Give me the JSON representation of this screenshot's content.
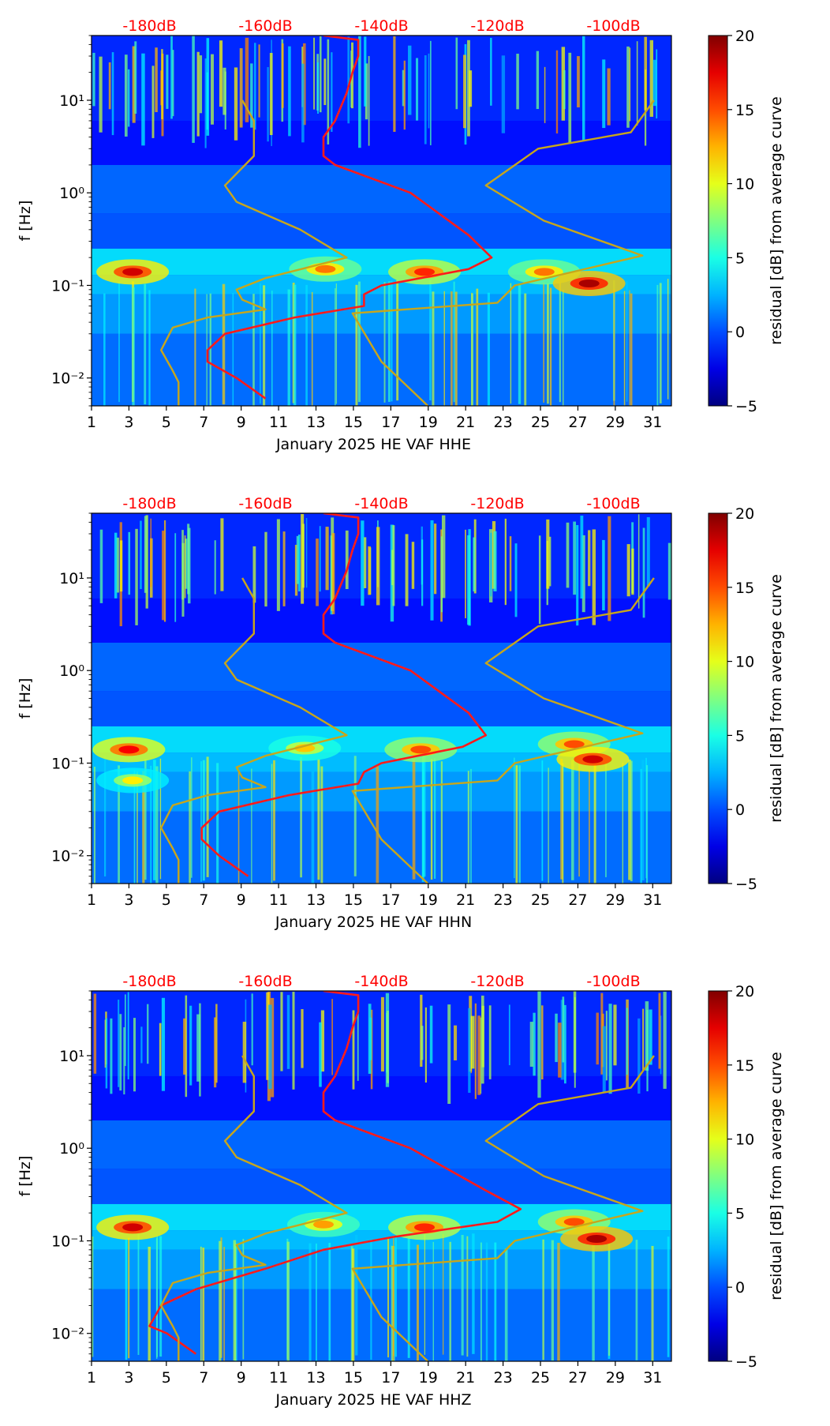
{
  "chart_data": [
    {
      "type": "heatmap",
      "xlabel": "January 2025 HE VAF  HHE",
      "ylabel": "f [Hz]",
      "x_ticks": [
        "1",
        "3",
        "5",
        "7",
        "9",
        "11",
        "13",
        "15",
        "17",
        "19",
        "21",
        "23",
        "25",
        "27",
        "29",
        "31"
      ],
      "y_ticks": [
        "10⁻²",
        "10⁻¹",
        "10⁰",
        "10¹"
      ],
      "top_ticks": [
        "-180dB",
        "-160dB",
        "-140dB",
        "-120dB",
        "-100dB"
      ],
      "colorbar_label": "residual [dB] from average curve",
      "colorbar_ticks": [
        "−5",
        "0",
        "5",
        "10",
        "15",
        "20"
      ],
      "zlim": [
        -5,
        20
      ],
      "ylim_hz": [
        0.005,
        50
      ],
      "xlim_day": [
        1,
        32
      ],
      "hotspots": [
        {
          "day": 3.2,
          "f_hz": 0.14,
          "level": 18
        },
        {
          "day": 13.5,
          "f_hz": 0.15,
          "level": 14
        },
        {
          "day": 18.8,
          "f_hz": 0.14,
          "level": 16
        },
        {
          "day": 25.2,
          "f_hz": 0.14,
          "level": 14
        },
        {
          "day": 27.6,
          "f_hz": 0.105,
          "level": 19
        }
      ],
      "series": [
        {
          "name": "average_curve_dB",
          "color": "#ff1a1a",
          "points": [
            [
              -150,
              50
            ],
            [
              -144,
              45
            ],
            [
              -144,
              30
            ],
            [
              -145,
              20
            ],
            [
              -146,
              12
            ],
            [
              -148,
              6
            ],
            [
              -150,
              4
            ],
            [
              -150,
              2.5
            ],
            [
              -148,
              2
            ],
            [
              -135,
              1
            ],
            [
              -125,
              0.35
            ],
            [
              -121,
              0.2
            ],
            [
              -125,
              0.15
            ],
            [
              -140,
              0.1
            ],
            [
              -143,
              0.08
            ],
            [
              -143,
              0.06
            ],
            [
              -155,
              0.045
            ],
            [
              -167,
              0.03
            ],
            [
              -170,
              0.02
            ],
            [
              -170,
              0.015
            ],
            [
              -165,
              0.01
            ],
            [
              -160,
              0.006
            ]
          ]
        },
        {
          "name": "noise_model_low_dB",
          "color": "#c8a61b",
          "points": [
            [
              -175,
              0.005
            ],
            [
              -175,
              0.009
            ],
            [
              -176,
              0.012
            ],
            [
              -178,
              0.02
            ],
            [
              -176,
              0.035
            ],
            [
              -170,
              0.045
            ],
            [
              -160,
              0.055
            ],
            [
              -164,
              0.07
            ],
            [
              -165,
              0.09
            ],
            [
              -160,
              0.12
            ],
            [
              -146,
              0.2
            ],
            [
              -154,
              0.4
            ],
            [
              -165,
              0.8
            ],
            [
              -167,
              1.2
            ],
            [
              -162,
              2.5
            ],
            [
              -162,
              6
            ],
            [
              -164,
              10
            ]
          ]
        },
        {
          "name": "noise_model_high_dB",
          "color": "#c8a61b",
          "points": [
            [
              -132,
              0.005
            ],
            [
              -140,
              0.015
            ],
            [
              -145,
              0.05
            ],
            [
              -120,
              0.065
            ],
            [
              -117,
              0.1
            ],
            [
              -95,
              0.21
            ],
            [
              -112,
              0.5
            ],
            [
              -122,
              1.2
            ],
            [
              -113,
              3
            ],
            [
              -97,
              4.5
            ],
            [
              -93,
              10
            ]
          ]
        }
      ]
    },
    {
      "type": "heatmap",
      "xlabel": "January 2025 HE VAF  HHN",
      "ylabel": "f [Hz]",
      "x_ticks": [
        "1",
        "3",
        "5",
        "7",
        "9",
        "11",
        "13",
        "15",
        "17",
        "19",
        "21",
        "23",
        "25",
        "27",
        "29",
        "31"
      ],
      "y_ticks": [
        "10⁻²",
        "10⁻¹",
        "10⁰",
        "10¹"
      ],
      "top_ticks": [
        "-180dB",
        "-160dB",
        "-140dB",
        "-120dB",
        "-100dB"
      ],
      "colorbar_label": "residual [dB] from average curve",
      "colorbar_ticks": [
        "−5",
        "0",
        "5",
        "10",
        "15",
        "20"
      ],
      "zlim": [
        -5,
        20
      ],
      "ylim_hz": [
        0.005,
        50
      ],
      "xlim_day": [
        1,
        32
      ],
      "hotspots": [
        {
          "day": 3.0,
          "f_hz": 0.14,
          "level": 17
        },
        {
          "day": 3.2,
          "f_hz": 0.065,
          "level": 11
        },
        {
          "day": 12.4,
          "f_hz": 0.145,
          "level": 12
        },
        {
          "day": 18.6,
          "f_hz": 0.14,
          "level": 15
        },
        {
          "day": 26.8,
          "f_hz": 0.16,
          "level": 15
        },
        {
          "day": 27.8,
          "f_hz": 0.11,
          "level": 18
        }
      ],
      "series": [
        {
          "name": "average_curve_dB",
          "color": "#ff1a1a",
          "points": [
            [
              -150,
              50
            ],
            [
              -144,
              45
            ],
            [
              -144,
              30
            ],
            [
              -145,
              20
            ],
            [
              -146,
              12
            ],
            [
              -148,
              6
            ],
            [
              -150,
              4
            ],
            [
              -150,
              2.5
            ],
            [
              -148,
              2
            ],
            [
              -135,
              1
            ],
            [
              -125,
              0.35
            ],
            [
              -122,
              0.2
            ],
            [
              -126,
              0.15
            ],
            [
              -140,
              0.1
            ],
            [
              -143,
              0.08
            ],
            [
              -144,
              0.06
            ],
            [
              -156,
              0.045
            ],
            [
              -168,
              0.03
            ],
            [
              -171,
              0.02
            ],
            [
              -171,
              0.015
            ],
            [
              -168,
              0.01
            ],
            [
              -163,
              0.006
            ]
          ]
        },
        {
          "name": "noise_model_low_dB",
          "color": "#c8a61b",
          "points": [
            [
              -175,
              0.005
            ],
            [
              -175,
              0.009
            ],
            [
              -176,
              0.012
            ],
            [
              -178,
              0.02
            ],
            [
              -176,
              0.035
            ],
            [
              -170,
              0.045
            ],
            [
              -160,
              0.055
            ],
            [
              -164,
              0.07
            ],
            [
              -165,
              0.09
            ],
            [
              -160,
              0.12
            ],
            [
              -146,
              0.2
            ],
            [
              -154,
              0.4
            ],
            [
              -165,
              0.8
            ],
            [
              -167,
              1.2
            ],
            [
              -162,
              2.5
            ],
            [
              -162,
              6
            ],
            [
              -164,
              10
            ]
          ]
        },
        {
          "name": "noise_model_high_dB",
          "color": "#c8a61b",
          "points": [
            [
              -132,
              0.005
            ],
            [
              -140,
              0.015
            ],
            [
              -145,
              0.05
            ],
            [
              -120,
              0.065
            ],
            [
              -117,
              0.1
            ],
            [
              -95,
              0.21
            ],
            [
              -112,
              0.5
            ],
            [
              -122,
              1.2
            ],
            [
              -113,
              3
            ],
            [
              -97,
              4.5
            ],
            [
              -93,
              10
            ]
          ]
        }
      ]
    },
    {
      "type": "heatmap",
      "xlabel": "January 2025 HE VAF  HHZ",
      "ylabel": "f [Hz]",
      "x_ticks": [
        "1",
        "3",
        "5",
        "7",
        "9",
        "11",
        "13",
        "15",
        "17",
        "19",
        "21",
        "23",
        "25",
        "27",
        "29",
        "31"
      ],
      "y_ticks": [
        "10⁻²",
        "10⁻¹",
        "10⁰",
        "10¹"
      ],
      "top_ticks": [
        "-180dB",
        "-160dB",
        "-140dB",
        "-120dB",
        "-100dB"
      ],
      "colorbar_label": "residual [dB] from average curve",
      "colorbar_ticks": [
        "−5",
        "0",
        "5",
        "10",
        "15",
        "20"
      ],
      "zlim": [
        -5,
        20
      ],
      "ylim_hz": [
        0.005,
        50
      ],
      "xlim_day": [
        1,
        32
      ],
      "hotspots": [
        {
          "day": 3.2,
          "f_hz": 0.14,
          "level": 18
        },
        {
          "day": 13.4,
          "f_hz": 0.15,
          "level": 13
        },
        {
          "day": 18.8,
          "f_hz": 0.14,
          "level": 16
        },
        {
          "day": 26.8,
          "f_hz": 0.16,
          "level": 15
        },
        {
          "day": 28.0,
          "f_hz": 0.105,
          "level": 19
        }
      ],
      "series": [
        {
          "name": "average_curve_dB",
          "color": "#ff1a1a",
          "points": [
            [
              -150,
              50
            ],
            [
              -144,
              45
            ],
            [
              -144,
              30
            ],
            [
              -145,
              20
            ],
            [
              -146,
              12
            ],
            [
              -148,
              6
            ],
            [
              -150,
              4
            ],
            [
              -150,
              2.5
            ],
            [
              -148,
              2
            ],
            [
              -135,
              1
            ],
            [
              -122,
              0.35
            ],
            [
              -116,
              0.22
            ],
            [
              -120,
              0.16
            ],
            [
              -138,
              0.11
            ],
            [
              -150,
              0.08
            ],
            [
              -160,
              0.05
            ],
            [
              -172,
              0.03
            ],
            [
              -178,
              0.02
            ],
            [
              -180,
              0.012
            ],
            [
              -177,
              0.01
            ],
            [
              -172,
              0.006
            ]
          ]
        },
        {
          "name": "noise_model_low_dB",
          "color": "#c8a61b",
          "points": [
            [
              -175,
              0.005
            ],
            [
              -175,
              0.009
            ],
            [
              -176,
              0.012
            ],
            [
              -178,
              0.02
            ],
            [
              -176,
              0.035
            ],
            [
              -170,
              0.045
            ],
            [
              -160,
              0.055
            ],
            [
              -164,
              0.07
            ],
            [
              -165,
              0.09
            ],
            [
              -160,
              0.12
            ],
            [
              -146,
              0.2
            ],
            [
              -154,
              0.4
            ],
            [
              -165,
              0.8
            ],
            [
              -167,
              1.2
            ],
            [
              -162,
              2.5
            ],
            [
              -162,
              6
            ],
            [
              -164,
              10
            ]
          ]
        },
        {
          "name": "noise_model_high_dB",
          "color": "#c8a61b",
          "points": [
            [
              -132,
              0.005
            ],
            [
              -140,
              0.015
            ],
            [
              -145,
              0.05
            ],
            [
              -120,
              0.065
            ],
            [
              -117,
              0.1
            ],
            [
              -95,
              0.21
            ],
            [
              -112,
              0.5
            ],
            [
              -122,
              1.2
            ],
            [
              -113,
              3
            ],
            [
              -97,
              4.5
            ],
            [
              -93,
              10
            ]
          ]
        }
      ]
    }
  ]
}
